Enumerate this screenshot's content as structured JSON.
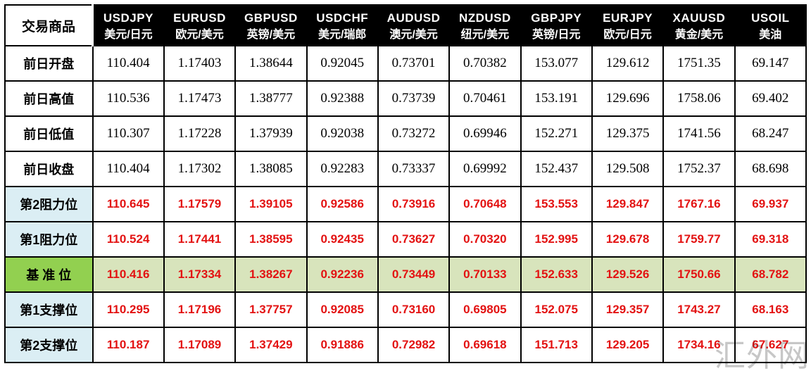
{
  "chart_data": {
    "type": "table",
    "corner_label": "交易商品",
    "columns": [
      {
        "symbol": "USDJPY",
        "name_cn": "美元/日元"
      },
      {
        "symbol": "EURUSD",
        "name_cn": "欧元/美元"
      },
      {
        "symbol": "GBPUSD",
        "name_cn": "英镑/美元"
      },
      {
        "symbol": "USDCHF",
        "name_cn": "美元/瑞郎"
      },
      {
        "symbol": "AUDUSD",
        "name_cn": "澳元/美元"
      },
      {
        "symbol": "NZDUSD",
        "name_cn": "纽元/美元"
      },
      {
        "symbol": "GBPJPY",
        "name_cn": "英镑/日元"
      },
      {
        "symbol": "EURJPY",
        "name_cn": "欧元/日元"
      },
      {
        "symbol": "XAUUSD",
        "name_cn": "黄金/美元"
      },
      {
        "symbol": "USOIL",
        "name_cn": "美油"
      }
    ],
    "rows": [
      {
        "label": "前日开盘",
        "style": "plain",
        "values": [
          "110.404",
          "1.17403",
          "1.38644",
          "0.92045",
          "0.73701",
          "0.70382",
          "153.077",
          "129.612",
          "1751.35",
          "69.147"
        ]
      },
      {
        "label": "前日高值",
        "style": "plain",
        "values": [
          "110.536",
          "1.17473",
          "1.38777",
          "0.92388",
          "0.73739",
          "0.70461",
          "153.191",
          "129.696",
          "1758.06",
          "69.402"
        ]
      },
      {
        "label": "前日低值",
        "style": "plain",
        "values": [
          "110.307",
          "1.17228",
          "1.37939",
          "0.92038",
          "0.73272",
          "0.69946",
          "152.271",
          "129.375",
          "1741.56",
          "68.247"
        ]
      },
      {
        "label": "前日收盘",
        "style": "plain",
        "values": [
          "110.404",
          "1.17302",
          "1.38085",
          "0.92283",
          "0.73337",
          "0.69992",
          "152.437",
          "129.508",
          "1752.37",
          "68.698"
        ]
      },
      {
        "label": "第2阻力位",
        "style": "resistance",
        "values": [
          "110.645",
          "1.17579",
          "1.39105",
          "0.92586",
          "0.73916",
          "0.70648",
          "153.553",
          "129.847",
          "1767.16",
          "69.937"
        ]
      },
      {
        "label": "第1阻力位",
        "style": "resistance",
        "values": [
          "110.524",
          "1.17441",
          "1.38595",
          "0.92435",
          "0.73627",
          "0.70320",
          "152.995",
          "129.678",
          "1759.77",
          "69.318"
        ]
      },
      {
        "label": "基 准 位",
        "style": "pivot",
        "values": [
          "110.416",
          "1.17334",
          "1.38267",
          "0.92236",
          "0.73449",
          "0.70133",
          "152.633",
          "129.526",
          "1750.66",
          "68.782"
        ]
      },
      {
        "label": "第1支撑位",
        "style": "support",
        "values": [
          "110.295",
          "1.17196",
          "1.37757",
          "0.92085",
          "0.73160",
          "0.69805",
          "152.075",
          "129.357",
          "1743.27",
          "68.163"
        ]
      },
      {
        "label": "第2支撑位",
        "style": "support",
        "values": [
          "110.187",
          "1.17089",
          "1.37429",
          "0.91886",
          "0.72982",
          "0.69618",
          "151.713",
          "129.205",
          "1734.16",
          "67.627"
        ]
      }
    ]
  },
  "watermark": "汇外网",
  "colors": {
    "header_bg": "#000000",
    "header_text": "#ffffff",
    "label_blue_bg": "#dbeef4",
    "pivot_label_bg": "#92d050",
    "pivot_row_bg": "#d8e4bc",
    "value_red": "#e31212",
    "border": "#000000"
  }
}
